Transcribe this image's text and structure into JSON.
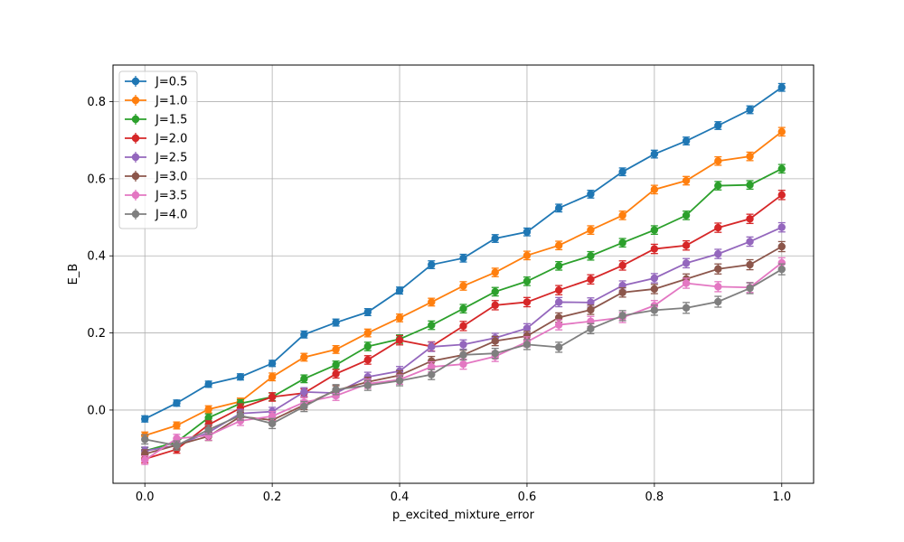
{
  "chart_data": {
    "type": "line",
    "title": "",
    "xlabel": "p_excited_mixture_error",
    "ylabel": "E_B",
    "xlim": [
      -0.05,
      1.05
    ],
    "ylim": [
      -0.19,
      0.895
    ],
    "xticks": [
      0.0,
      0.2,
      0.4,
      0.6,
      0.8,
      1.0
    ],
    "xtick_labels": [
      "0.0",
      "0.2",
      "0.4",
      "0.6",
      "0.8",
      "1.0"
    ],
    "yticks": [
      0.0,
      0.2,
      0.4,
      0.6,
      0.8
    ],
    "ytick_labels": [
      "0.0",
      "0.2",
      "0.4",
      "0.6",
      "0.8"
    ],
    "grid": true,
    "legend_position": "top-left",
    "error_bars": true,
    "x": [
      0.0,
      0.05,
      0.1,
      0.15,
      0.2,
      0.25,
      0.3,
      0.35,
      0.4,
      0.45,
      0.5,
      0.55,
      0.6,
      0.65,
      0.7,
      0.75,
      0.8,
      0.85,
      0.9,
      0.95,
      1.0
    ],
    "series": [
      {
        "name": "J=0.5",
        "color": "#1f77b4",
        "values": [
          -0.023,
          0.018,
          0.067,
          0.086,
          0.121,
          0.196,
          0.227,
          0.254,
          0.31,
          0.377,
          0.394,
          0.445,
          0.462,
          0.524,
          0.56,
          0.618,
          0.664,
          0.698,
          0.738,
          0.779,
          0.837
        ],
        "errors": [
          0.008,
          0.008,
          0.008,
          0.008,
          0.008,
          0.009,
          0.009,
          0.009,
          0.009,
          0.01,
          0.01,
          0.01,
          0.01,
          0.01,
          0.01,
          0.01,
          0.01,
          0.01,
          0.01,
          0.01,
          0.01
        ]
      },
      {
        "name": "J=1.0",
        "color": "#ff7f0e",
        "values": [
          -0.066,
          -0.04,
          0.002,
          0.022,
          0.086,
          0.137,
          0.157,
          0.2,
          0.239,
          0.28,
          0.322,
          0.357,
          0.401,
          0.427,
          0.467,
          0.505,
          0.572,
          0.595,
          0.646,
          0.658,
          0.722
        ],
        "errors": [
          0.009,
          0.009,
          0.009,
          0.009,
          0.01,
          0.01,
          0.01,
          0.01,
          0.01,
          0.01,
          0.011,
          0.011,
          0.011,
          0.011,
          0.011,
          0.011,
          0.011,
          0.011,
          0.011,
          0.011,
          0.011
        ]
      },
      {
        "name": "J=1.5",
        "color": "#2ca02c",
        "values": [
          -0.106,
          -0.083,
          -0.02,
          0.017,
          0.034,
          0.081,
          0.117,
          0.165,
          0.184,
          0.22,
          0.263,
          0.307,
          0.334,
          0.374,
          0.4,
          0.434,
          0.467,
          0.505,
          0.582,
          0.584,
          0.626
        ],
        "errors": [
          0.009,
          0.009,
          0.01,
          0.01,
          0.01,
          0.01,
          0.01,
          0.011,
          0.011,
          0.011,
          0.011,
          0.011,
          0.011,
          0.011,
          0.011,
          0.011,
          0.011,
          0.011,
          0.011,
          0.011,
          0.011
        ]
      },
      {
        "name": "J=2.0",
        "color": "#d62728",
        "values": [
          -0.127,
          -0.102,
          -0.038,
          0.005,
          0.034,
          0.044,
          0.094,
          0.13,
          0.181,
          0.165,
          0.218,
          0.272,
          0.28,
          0.311,
          0.339,
          0.375,
          0.418,
          0.427,
          0.473,
          0.496,
          0.558
        ],
        "errors": [
          0.01,
          0.01,
          0.01,
          0.011,
          0.011,
          0.011,
          0.011,
          0.011,
          0.012,
          0.012,
          0.012,
          0.012,
          0.012,
          0.012,
          0.012,
          0.012,
          0.012,
          0.012,
          0.012,
          0.012,
          0.012
        ]
      },
      {
        "name": "J=2.5",
        "color": "#9467bd",
        "values": [
          -0.106,
          -0.092,
          -0.058,
          -0.009,
          -0.004,
          0.047,
          0.044,
          0.086,
          0.101,
          0.164,
          0.17,
          0.187,
          0.212,
          0.28,
          0.279,
          0.323,
          0.342,
          0.381,
          0.405,
          0.437,
          0.474
        ],
        "errors": [
          0.01,
          0.01,
          0.011,
          0.011,
          0.011,
          0.011,
          0.011,
          0.012,
          0.012,
          0.012,
          0.012,
          0.012,
          0.012,
          0.012,
          0.012,
          0.012,
          0.012,
          0.012,
          0.012,
          0.012,
          0.012
        ]
      },
      {
        "name": "J=3.0",
        "color": "#8c564b",
        "values": [
          -0.114,
          -0.091,
          -0.068,
          -0.017,
          -0.026,
          0.013,
          0.051,
          0.073,
          0.09,
          0.127,
          0.143,
          0.179,
          0.192,
          0.24,
          0.26,
          0.305,
          0.314,
          0.34,
          0.366,
          0.377,
          0.424
        ],
        "errors": [
          0.011,
          0.011,
          0.011,
          0.011,
          0.012,
          0.012,
          0.012,
          0.012,
          0.012,
          0.012,
          0.012,
          0.012,
          0.012,
          0.012,
          0.012,
          0.012,
          0.012,
          0.013,
          0.013,
          0.013,
          0.013
        ]
      },
      {
        "name": "J=3.5",
        "color": "#e377c2",
        "values": [
          -0.13,
          -0.074,
          -0.066,
          -0.028,
          -0.016,
          0.02,
          0.037,
          0.068,
          0.079,
          0.112,
          0.119,
          0.139,
          0.177,
          0.221,
          0.23,
          0.24,
          0.271,
          0.329,
          0.32,
          0.318,
          0.382
        ],
        "errors": [
          0.011,
          0.011,
          0.012,
          0.012,
          0.012,
          0.012,
          0.012,
          0.012,
          0.012,
          0.013,
          0.013,
          0.013,
          0.013,
          0.013,
          0.013,
          0.013,
          0.013,
          0.013,
          0.013,
          0.013,
          0.013
        ]
      },
      {
        "name": "J=4.0",
        "color": "#7f7f7f",
        "values": [
          -0.076,
          -0.092,
          -0.051,
          -0.014,
          -0.035,
          0.009,
          0.053,
          0.064,
          0.076,
          0.092,
          0.143,
          0.147,
          0.17,
          0.163,
          0.211,
          0.245,
          0.259,
          0.265,
          0.281,
          0.316,
          0.365
        ],
        "errors": [
          0.012,
          0.012,
          0.012,
          0.012,
          0.013,
          0.013,
          0.013,
          0.013,
          0.013,
          0.013,
          0.013,
          0.013,
          0.013,
          0.013,
          0.013,
          0.013,
          0.013,
          0.014,
          0.014,
          0.014,
          0.014
        ]
      }
    ]
  }
}
